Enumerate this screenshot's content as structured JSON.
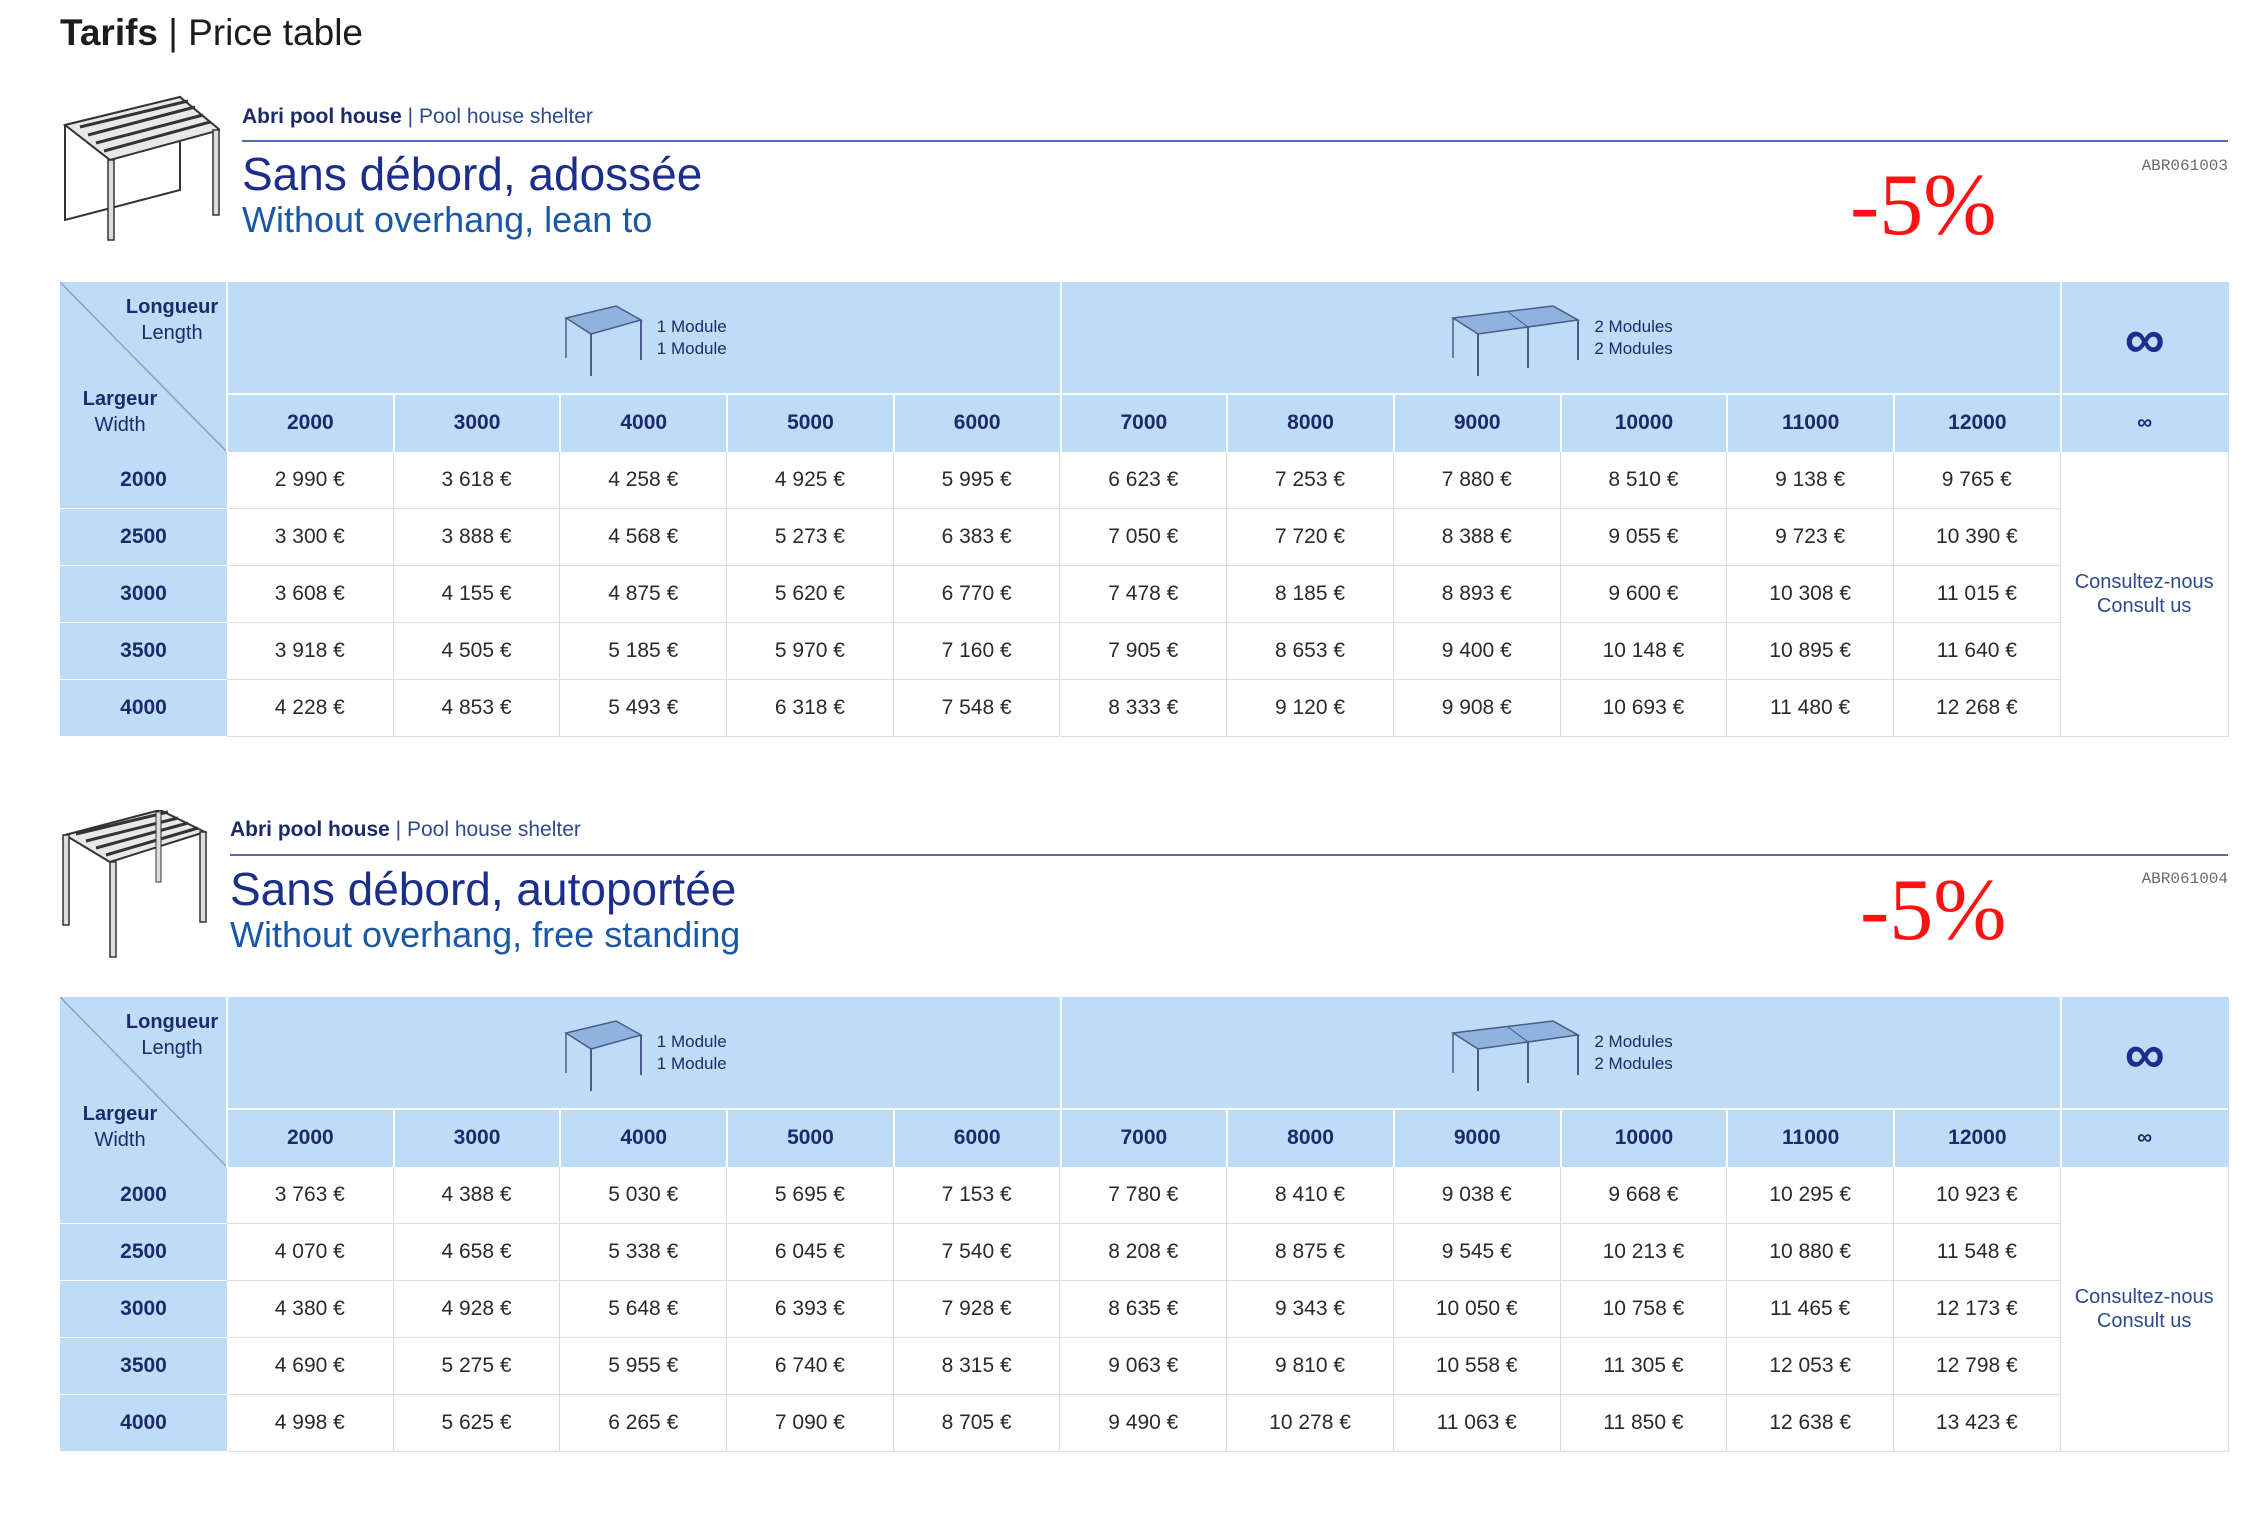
{
  "page_title": {
    "bold": "Tarifs",
    "rest": " | Price table"
  },
  "colors": {
    "header_bg": "#bfdcf6",
    "title_navy": "#1c2e8c",
    "title_blue": "#1a58a6",
    "discount_red": "#ff1111"
  },
  "columns": [
    "2000",
    "3000",
    "4000",
    "5000",
    "6000",
    "7000",
    "8000",
    "9000",
    "10000",
    "11000",
    "12000",
    "∞"
  ],
  "rows": [
    "2000",
    "2500",
    "3000",
    "3500",
    "4000"
  ],
  "corner": {
    "length_fr": "Longueur",
    "length_en": "Length",
    "width_fr": "Largeur",
    "width_en": "Width"
  },
  "modules": {
    "one_fr": "1 Module",
    "one_en": "1 Module",
    "two_fr": "2 Modules",
    "two_en": "2 Modules",
    "infinity": "∞"
  },
  "consult": {
    "fr": "Consultez-nous",
    "en": "Consult us"
  },
  "sections": [
    {
      "category_fr": "Abri pool house",
      "category_en": " | Pool house shelter",
      "title_fr": "Sans débord, adossée",
      "title_en": "Without overhang, lean to",
      "code": "ABR061003",
      "discount": "-5%",
      "illustration": "lean-to-pergola-icon",
      "prices": [
        [
          "2 990 €",
          "3 618 €",
          "4 258 €",
          "4 925 €",
          "5 995 €",
          "6 623 €",
          "7 253 €",
          "7 880 €",
          "8 510 €",
          "9 138 €",
          "9 765 €"
        ],
        [
          "3 300 €",
          "3 888 €",
          "4 568 €",
          "5 273 €",
          "6 383 €",
          "7 050 €",
          "7 720 €",
          "8 388 €",
          "9 055 €",
          "9 723 €",
          "10 390 €"
        ],
        [
          "3 608 €",
          "4 155 €",
          "4 875 €",
          "5 620 €",
          "6 770 €",
          "7 478 €",
          "8 185 €",
          "8 893 €",
          "9 600 €",
          "10 308 €",
          "11 015 €"
        ],
        [
          "3 918 €",
          "4 505 €",
          "5 185 €",
          "5 970 €",
          "7 160 €",
          "7 905 €",
          "8 653 €",
          "9 400 €",
          "10 148 €",
          "10 895 €",
          "11 640 €"
        ],
        [
          "4 228 €",
          "4 853 €",
          "5 493 €",
          "6 318 €",
          "7 548 €",
          "8 333 €",
          "9 120 €",
          "9 908 €",
          "10 693 €",
          "11 480 €",
          "12 268 €"
        ]
      ]
    },
    {
      "category_fr": "Abri pool house",
      "category_en": " | Pool house shelter",
      "title_fr": "Sans débord, autoportée",
      "title_en": "Without overhang, free standing",
      "code": "ABR061004",
      "discount": "-5%",
      "illustration": "free-standing-pergola-icon",
      "prices": [
        [
          "3 763 €",
          "4 388 €",
          "5 030 €",
          "5 695 €",
          "7 153 €",
          "7 780 €",
          "8 410 €",
          "9 038 €",
          "9 668 €",
          "10 295 €",
          "10 923 €"
        ],
        [
          "4 070 €",
          "4 658 €",
          "5 338 €",
          "6 045 €",
          "7 540 €",
          "8 208 €",
          "8 875 €",
          "9 545 €",
          "10 213 €",
          "10 880 €",
          "11 548 €"
        ],
        [
          "4 380 €",
          "4 928 €",
          "5 648 €",
          "6 393 €",
          "7 928 €",
          "8 635 €",
          "9 343 €",
          "10 050 €",
          "10 758 €",
          "11 465 €",
          "12 173 €"
        ],
        [
          "4 690 €",
          "5 275 €",
          "5 955 €",
          "6 740 €",
          "8 315 €",
          "9 063 €",
          "9 810 €",
          "10 558 €",
          "11 305 €",
          "12 053 €",
          "12 798 €"
        ],
        [
          "4 998 €",
          "5 625 €",
          "6 265 €",
          "7 090 €",
          "8 705 €",
          "9 490 €",
          "10 278 €",
          "11 063 €",
          "11 850 €",
          "12 638 €",
          "13 423 €"
        ]
      ]
    }
  ]
}
